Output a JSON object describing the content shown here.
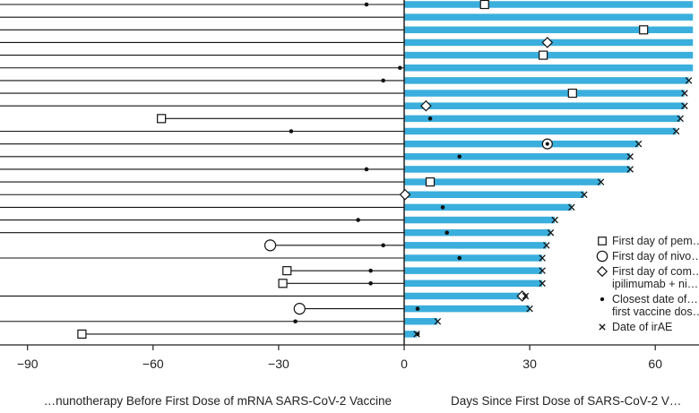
{
  "chart_data": {
    "type": "bar",
    "x_axis": {
      "ticks": [
        -90,
        -60,
        -30,
        0,
        30,
        60
      ],
      "tick_labels": [
        "−90",
        "−60",
        "−30",
        "0",
        "30",
        "60"
      ],
      "range": [
        -98,
        69
      ]
    },
    "x_title_left": "…nunotherapy Before First Dose of mRNA SARS-CoV-2 Vaccine",
    "x_title_right": "Days Since First Dose of SARS-CoV-2 V…",
    "colors": {
      "bar": "#3aaedc",
      "line": "#111111",
      "axis": "#222222"
    },
    "legend": [
      {
        "marker": "square",
        "text": [
          "First day of pem…"
        ]
      },
      {
        "marker": "circle",
        "text": [
          "First day of nivo…"
        ]
      },
      {
        "marker": "diamond",
        "text": [
          "First day of com…",
          "ipilimumab + ni…"
        ]
      },
      {
        "marker": "dot",
        "text": [
          "Closest date of…",
          "first vaccine dos…"
        ]
      },
      {
        "marker": "cross",
        "text": [
          "Date of irAE"
        ]
      }
    ],
    "patients": [
      {
        "start": null,
        "pre_event": -9,
        "pre_marker": "dot",
        "bar_end": 69,
        "post_marker": "square",
        "post_x": 19,
        "irae": null
      },
      {
        "start": null,
        "pre_event": null,
        "pre_marker": null,
        "bar_end": 69,
        "post_marker": null,
        "post_x": null,
        "irae": null
      },
      {
        "start": null,
        "pre_event": null,
        "pre_marker": null,
        "bar_end": 69,
        "post_marker": "square",
        "post_x": 57,
        "irae": null
      },
      {
        "start": null,
        "pre_event": null,
        "pre_marker": null,
        "bar_end": 69,
        "post_marker": "diamond",
        "post_x": 34,
        "irae": null
      },
      {
        "start": null,
        "pre_event": null,
        "pre_marker": null,
        "bar_end": 69,
        "post_marker": "square",
        "post_x": 33,
        "irae": null
      },
      {
        "start": null,
        "pre_event": -1,
        "pre_marker": "dot",
        "bar_end": 69,
        "post_marker": null,
        "post_x": null,
        "irae": null
      },
      {
        "start": null,
        "pre_event": -5,
        "pre_marker": "dot",
        "bar_end": 68,
        "post_marker": null,
        "post_x": null,
        "irae": 68
      },
      {
        "start": null,
        "pre_event": null,
        "pre_marker": null,
        "bar_end": 67,
        "post_marker": "square",
        "post_x": 40,
        "irae": 67
      },
      {
        "start": null,
        "pre_event": null,
        "pre_marker": null,
        "bar_end": 67,
        "post_marker": "diamond",
        "post_x": 5,
        "irae": 67
      },
      {
        "start": -58,
        "pre_event": null,
        "pre_marker": "square",
        "bar_end": 66,
        "post_marker": "dot",
        "post_x": 6,
        "irae": 66
      },
      {
        "start": null,
        "pre_event": -27,
        "pre_marker": "dot",
        "bar_end": 65,
        "post_marker": null,
        "post_x": null,
        "irae": 65
      },
      {
        "start": null,
        "pre_event": null,
        "pre_marker": null,
        "bar_end": 56,
        "post_marker": "circledot",
        "post_x": 34,
        "irae": 56
      },
      {
        "start": null,
        "pre_event": null,
        "pre_marker": null,
        "bar_end": 54,
        "post_marker": "dot",
        "post_x": 13,
        "irae": 54
      },
      {
        "start": null,
        "pre_event": -9,
        "pre_marker": "dot",
        "bar_end": 54,
        "post_marker": null,
        "post_x": null,
        "irae": 54
      },
      {
        "start": null,
        "pre_event": null,
        "pre_marker": null,
        "bar_end": 47,
        "post_marker": "square",
        "post_x": 6,
        "irae": 47
      },
      {
        "start": null,
        "pre_event": null,
        "pre_marker": null,
        "bar_end": 43,
        "post_marker": "diamond",
        "post_x": 0,
        "irae": 43
      },
      {
        "start": null,
        "pre_event": null,
        "pre_marker": null,
        "bar_end": 40,
        "post_marker": "dot",
        "post_x": 9,
        "irae": 40
      },
      {
        "start": null,
        "pre_event": -11,
        "pre_marker": "dot",
        "bar_end": 36,
        "post_marker": null,
        "post_x": null,
        "irae": 36
      },
      {
        "start": null,
        "pre_event": null,
        "pre_marker": null,
        "bar_end": 35,
        "post_marker": "dot",
        "post_x": 10,
        "irae": 35
      },
      {
        "start": -32,
        "pre_event": -5,
        "pre_marker": "circle",
        "bar_end": 34,
        "post_marker": null,
        "post_x": null,
        "irae": 34
      },
      {
        "start": null,
        "pre_event": null,
        "pre_marker": null,
        "bar_end": 33,
        "post_marker": "dot",
        "post_x": 13,
        "irae": 33
      },
      {
        "start": -28,
        "pre_event": -8,
        "pre_marker": "square",
        "bar_end": 33,
        "post_marker": null,
        "post_x": null,
        "irae": 33
      },
      {
        "start": -29,
        "pre_event": -8,
        "pre_marker": "square",
        "bar_end": 33,
        "post_marker": null,
        "post_x": null,
        "irae": 33
      },
      {
        "start": null,
        "pre_event": null,
        "pre_marker": null,
        "bar_end": 28,
        "post_marker": "diamond",
        "post_x": 28,
        "irae": 29
      },
      {
        "start": -25,
        "pre_event": null,
        "pre_marker": "circle",
        "bar_end": 30,
        "post_marker": "dot",
        "post_x": 3,
        "irae": 30
      },
      {
        "start": null,
        "pre_event": -26,
        "pre_marker": "dot",
        "bar_end": 8,
        "post_marker": null,
        "post_x": null,
        "irae": 8
      },
      {
        "start": -77,
        "pre_event": null,
        "pre_marker": "square",
        "bar_end": 3,
        "post_marker": "dot",
        "post_x": 3,
        "irae": 3
      }
    ]
  }
}
